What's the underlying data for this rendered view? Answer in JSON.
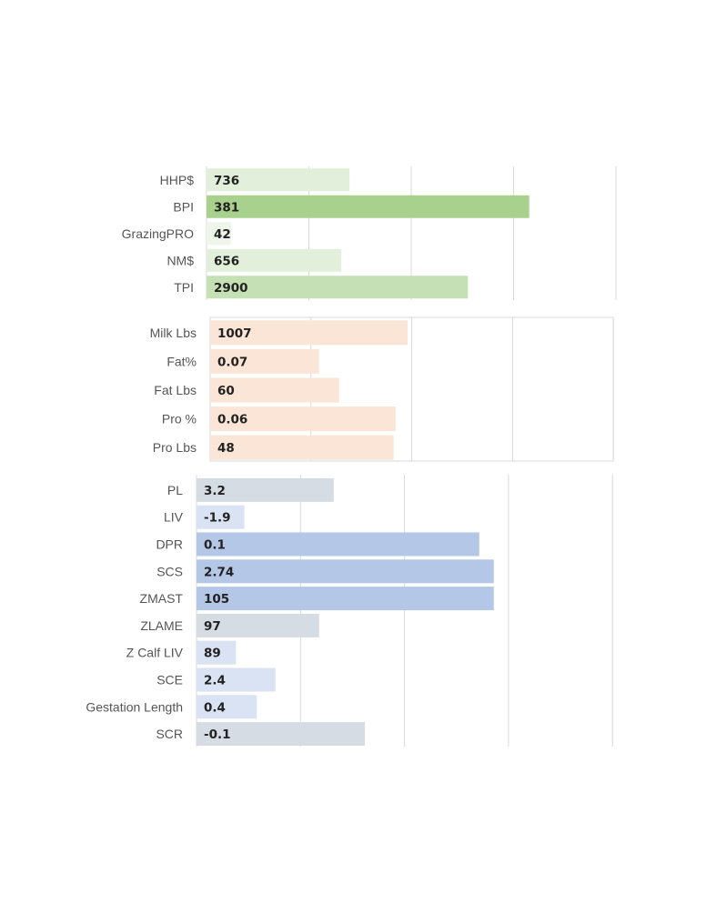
{
  "chart_data": [
    {
      "type": "bar",
      "orientation": "horizontal",
      "categories": [
        "HHP$",
        "BPI",
        "GrazingPRO",
        "NM$",
        "TPI"
      ],
      "labels": [
        "736",
        "381",
        "42",
        "656",
        "2900"
      ],
      "values": [
        736,
        381,
        42,
        656,
        2900
      ],
      "bar_fraction": [
        0.35,
        0.79,
        0.06,
        0.33,
        0.64
      ],
      "colors": [
        "#e2efda",
        "#a9d18e",
        "#eef5ea",
        "#e2efda",
        "#c5e0b4"
      ],
      "grid": true,
      "frame": false
    },
    {
      "type": "bar",
      "orientation": "horizontal",
      "categories": [
        "Milk Lbs",
        "Fat%",
        "Fat Lbs",
        "Pro %",
        "Pro Lbs"
      ],
      "labels": [
        "1007",
        "0.07",
        "60",
        "0.06",
        "48"
      ],
      "values": [
        1007,
        0.07,
        60,
        0.06,
        48
      ],
      "bar_fraction": [
        0.49,
        0.27,
        0.32,
        0.46,
        0.455
      ],
      "colors": [
        "#fbe5d6",
        "#fbe5d6",
        "#fbe5d6",
        "#fbe5d6",
        "#fbe5d6"
      ],
      "grid": true,
      "frame": true
    },
    {
      "type": "bar",
      "orientation": "horizontal",
      "categories": [
        "PL",
        "LIV",
        "DPR",
        "SCS",
        "ZMAST",
        "ZLAME",
        "Z Calf LIV",
        "SCE",
        "Gestation Length",
        "SCR"
      ],
      "labels": [
        "3.2",
        "-1.9",
        "0.1",
        "2.74",
        "105",
        "97",
        "89",
        "2.4",
        "0.4",
        "-0.1"
      ],
      "values": [
        3.2,
        -1.9,
        0.1,
        2.74,
        105,
        97,
        89,
        2.4,
        0.4,
        -0.1
      ],
      "bar_fraction": [
        0.33,
        0.115,
        0.68,
        0.715,
        0.715,
        0.295,
        0.095,
        0.19,
        0.145,
        0.405
      ],
      "colors": [
        "#d6dce4",
        "#dae3f3",
        "#b4c7e7",
        "#b4c7e7",
        "#b4c7e7",
        "#d6dce4",
        "#dae3f3",
        "#dae3f3",
        "#dae3f3",
        "#d6dce4"
      ],
      "grid": true,
      "frame": false
    }
  ]
}
